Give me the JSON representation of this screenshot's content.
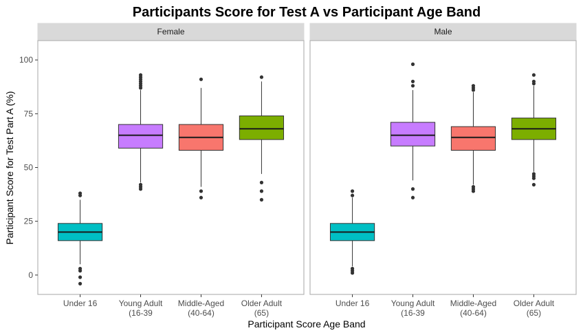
{
  "chart_data": {
    "type": "boxplot",
    "title": "Participants Score for Test A vs Participant Age Band",
    "xlabel": "Participant Score Age Band",
    "ylabel": "Participant Score for Test Part A (%)",
    "ylim": [
      -9,
      109
    ],
    "yticks": [
      0,
      25,
      50,
      75,
      100
    ],
    "grid": false,
    "legend": "none",
    "categories": [
      {
        "line1": "Under 16",
        "line2": "",
        "color": "#00bfc4"
      },
      {
        "line1": "Young Adult",
        "line2": "(16-39",
        "color": "#c77cff"
      },
      {
        "line1": "Middle-Aged",
        "line2": "(40-64)",
        "color": "#f8766d"
      },
      {
        "line1": "Older Adult",
        "line2": "(65)",
        "color": "#7cae00"
      }
    ],
    "panels": [
      {
        "name": "Female",
        "boxes": [
          {
            "lower_whisker": 5,
            "q1": 16,
            "median": 20,
            "q3": 24,
            "upper_whisker": 35,
            "outliers": [
              38,
              37,
              3,
              2,
              -1,
              -4
            ]
          },
          {
            "lower_whisker": 43,
            "q1": 59,
            "median": 65,
            "q3": 70,
            "upper_whisker": 86,
            "outliers": [
              93,
              92,
              91,
              90,
              89,
              88,
              87,
              42,
              41,
              40
            ]
          },
          {
            "lower_whisker": 41,
            "q1": 58,
            "median": 64,
            "q3": 70,
            "upper_whisker": 87,
            "outliers": [
              91,
              39,
              36
            ]
          },
          {
            "lower_whisker": 47,
            "q1": 63,
            "median": 68,
            "q3": 74,
            "upper_whisker": 90,
            "outliers": [
              92,
              43,
              39,
              35
            ]
          }
        ]
      },
      {
        "name": "Male",
        "boxes": [
          {
            "lower_whisker": 4,
            "q1": 16,
            "median": 20,
            "q3": 24,
            "upper_whisker": 36,
            "outliers": [
              39,
              37,
              3,
              2,
              1
            ]
          },
          {
            "lower_whisker": 44,
            "q1": 60,
            "median": 65,
            "q3": 71,
            "upper_whisker": 86,
            "outliers": [
              98,
              90,
              88,
              40,
              36
            ]
          },
          {
            "lower_whisker": 42,
            "q1": 58,
            "median": 64,
            "q3": 69,
            "upper_whisker": 85,
            "outliers": [
              88,
              87,
              86,
              41,
              40,
              39
            ]
          },
          {
            "lower_whisker": 48,
            "q1": 63,
            "median": 68,
            "q3": 73,
            "upper_whisker": 88,
            "outliers": [
              93,
              90,
              89,
              47,
              46,
              45,
              42
            ]
          }
        ]
      }
    ]
  }
}
